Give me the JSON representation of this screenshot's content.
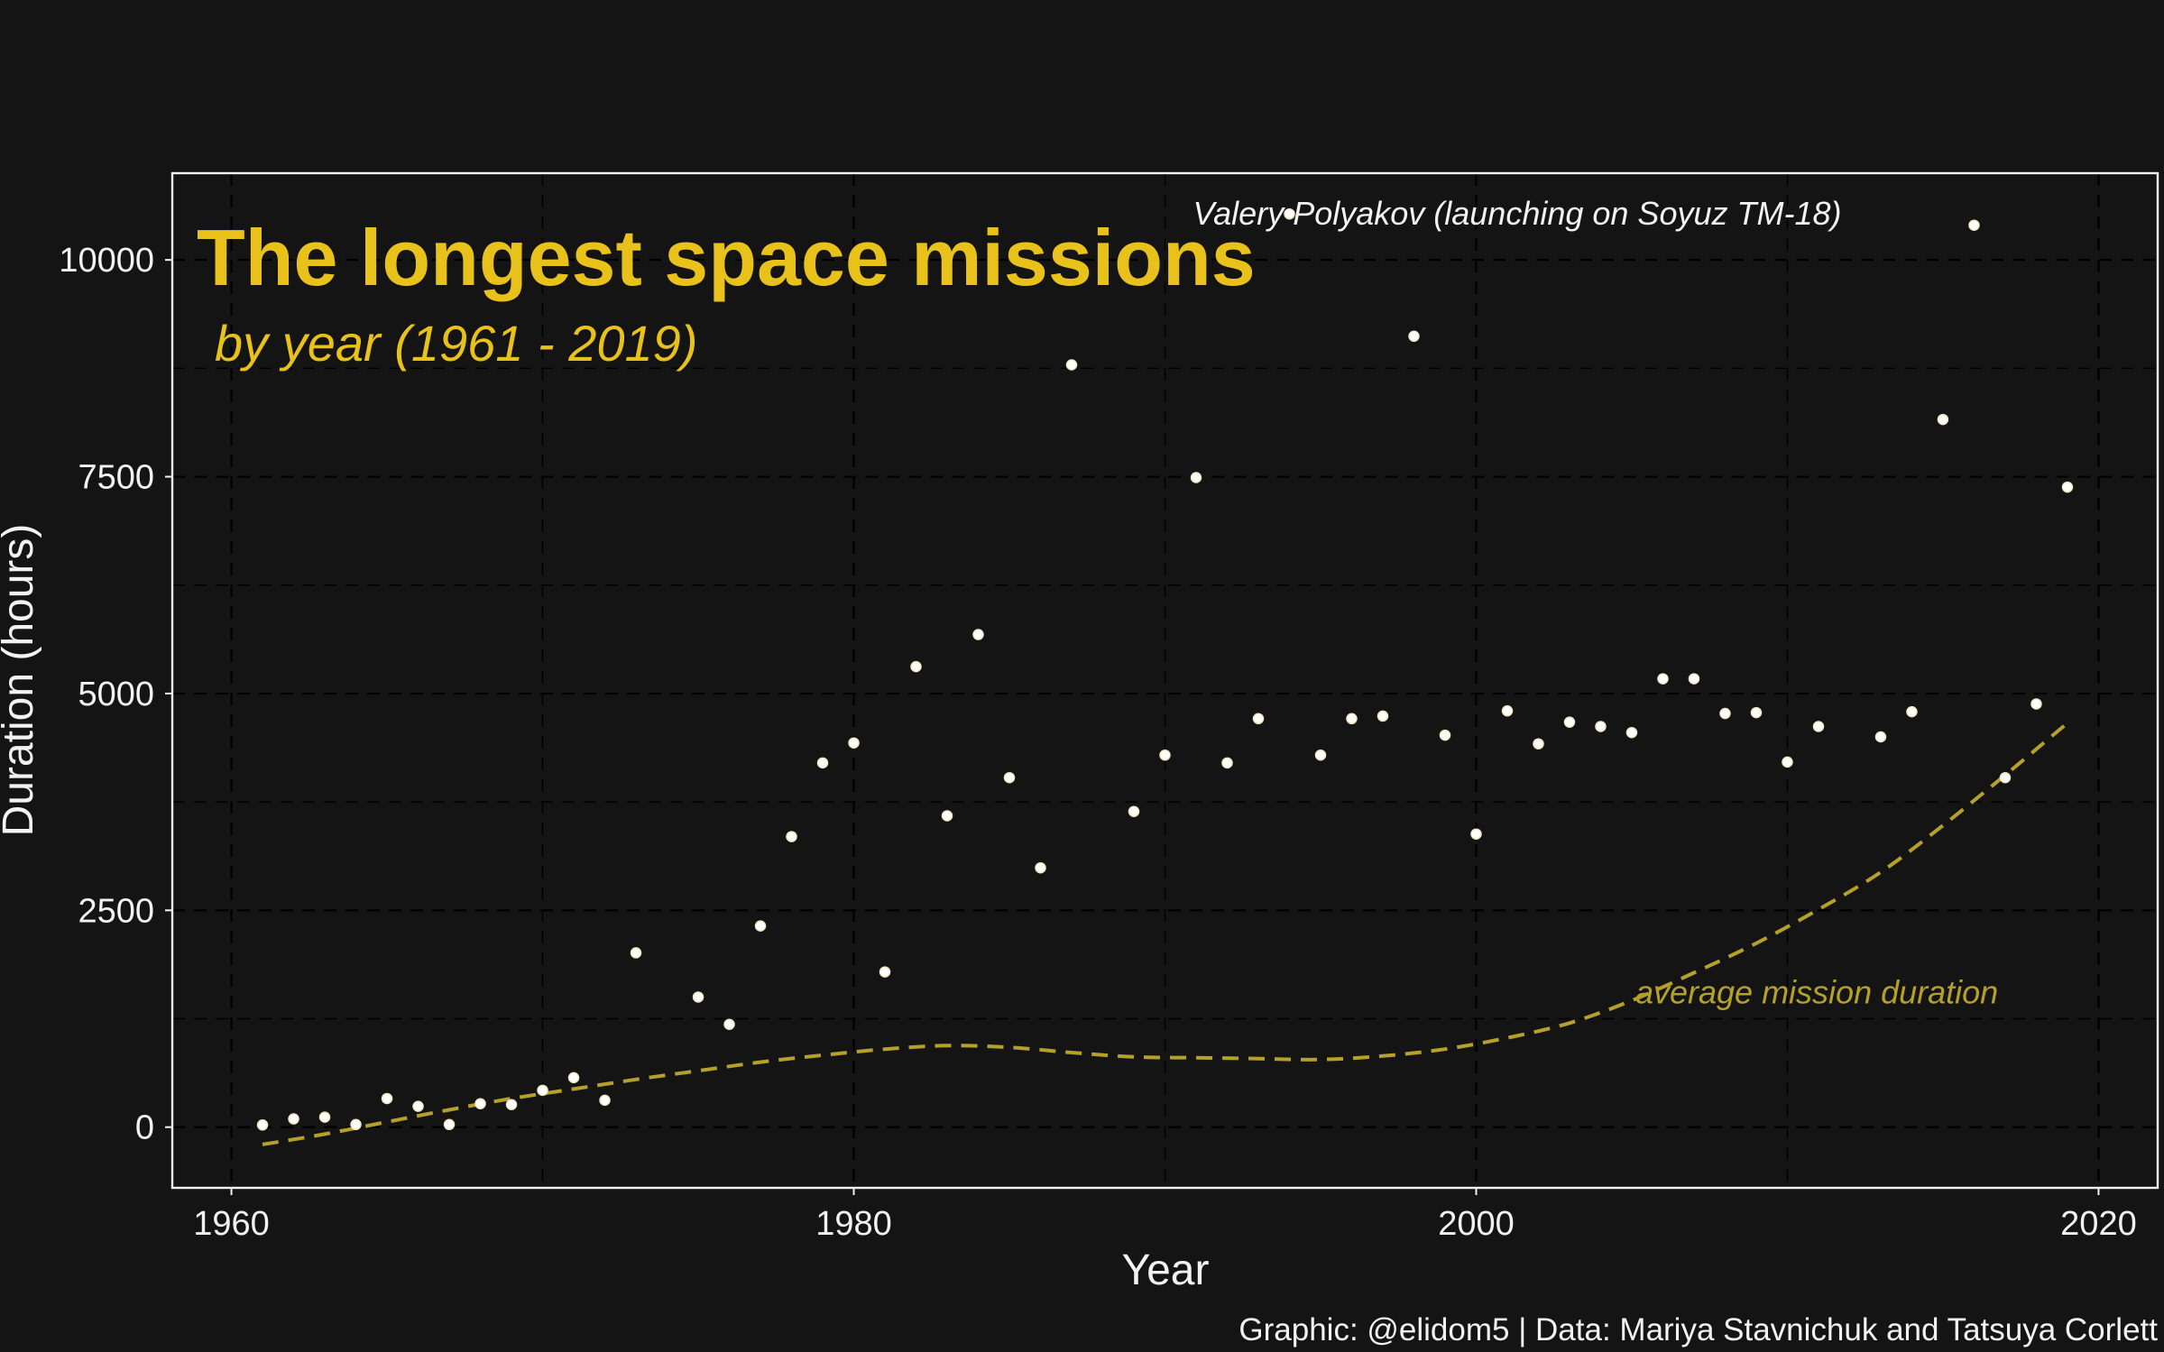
{
  "chart_data": {
    "type": "scatter",
    "title": "The longest space missions",
    "subtitle": "by year (1961 - 2019)",
    "xlabel": "Year",
    "ylabel": "Duration (hours)",
    "caption": "Graphic: @elidom5 | Data: Mariya Stavnichuk and Tatsuya Corlett",
    "xlim": [
      1958.1,
      2021.9
    ],
    "ylim": [
      -700,
      11000
    ],
    "x_ticks": [
      1960,
      1980,
      2000,
      2020
    ],
    "y_ticks": [
      0,
      2500,
      5000,
      7500,
      10000
    ],
    "grid": true,
    "colors": {
      "background": "#141414",
      "accent": "#e8c21a",
      "trend": "#b5a12a",
      "points": "#ffffff",
      "text": "#f2f2f2"
    },
    "series": [
      {
        "name": "",
        "x": [
          1961,
          1962,
          1963,
          1964,
          1965,
          1966,
          1967,
          1968,
          1969,
          1970,
          1971,
          1972,
          1973,
          1975,
          1976,
          1977,
          1978,
          1979,
          1980,
          1981,
          1982,
          1983,
          1984,
          1985,
          1986,
          1987,
          1989,
          1990,
          1991,
          1992,
          1993,
          1994,
          1995,
          1996,
          1997,
          1998,
          1999,
          2000,
          2001,
          2002,
          2003,
          2004,
          2005,
          2006,
          2007,
          2008,
          2009,
          2010,
          2011,
          2013,
          2014,
          2015,
          2016,
          2017,
          2018,
          2019
        ],
        "y": [
          25,
          95,
          115,
          30,
          330,
          240,
          30,
          270,
          260,
          425,
          570,
          310,
          2010,
          1500,
          1185,
          2320,
          3350,
          4200,
          4430,
          1790,
          5310,
          3590,
          5680,
          4030,
          2990,
          8790,
          3640,
          4290,
          7490,
          4200,
          4710,
          10530,
          4290,
          4710,
          4740,
          9120,
          4520,
          3380,
          4800,
          4420,
          4670,
          4620,
          4550,
          5170,
          5170,
          4770,
          4780,
          4210,
          4620,
          4500,
          4790,
          8160,
          10400,
          4030,
          4880,
          7380
        ]
      }
    ],
    "trend": {
      "name": "average mission duration",
      "x": [
        1961,
        1963,
        1965,
        1967,
        1969,
        1971,
        1973,
        1975,
        1977,
        1979,
        1981,
        1983,
        1985,
        1987,
        1989,
        1991,
        1993,
        1995,
        1997,
        1999,
        2001,
        2003,
        2005,
        2007,
        2009,
        2011,
        2013,
        2015,
        2017,
        2019
      ],
      "y": [
        -200,
        -80,
        60,
        200,
        330,
        440,
        550,
        650,
        750,
        830,
        900,
        940,
        920,
        860,
        810,
        800,
        790,
        780,
        820,
        900,
        1030,
        1200,
        1460,
        1780,
        2120,
        2510,
        2940,
        3480,
        4060,
        4660
      ]
    },
    "annotations": [
      {
        "text": "Valery Polyakov (launching on Soyuz TM-18)",
        "x": 1994,
        "y": 10530
      },
      {
        "text": "average mission duration",
        "x": 2005,
        "y": 1550
      }
    ]
  }
}
